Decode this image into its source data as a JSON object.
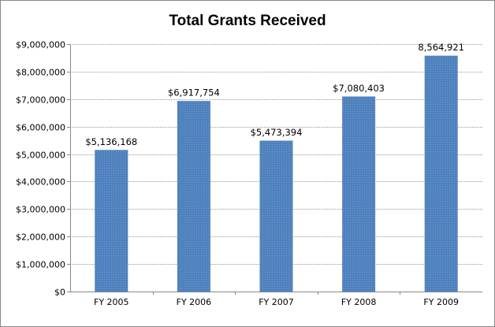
{
  "chart_data": {
    "type": "bar",
    "title": "Total Grants Received",
    "xlabel": "",
    "ylabel": "",
    "categories": [
      "FY 2005",
      "FY 2006",
      "FY 2007",
      "FY 2008",
      "FY 2009"
    ],
    "values": [
      5136168,
      6917754,
      5473394,
      7080403,
      8564921
    ],
    "data_labels": [
      "$5,136,168",
      "$6,917,754",
      "$5,473,394",
      "$7,080,403",
      "8,564,921"
    ],
    "ylim": [
      0,
      9000000
    ],
    "yticks": [
      0,
      1000000,
      2000000,
      3000000,
      4000000,
      5000000,
      6000000,
      7000000,
      8000000,
      9000000
    ],
    "ytick_labels": [
      "$0",
      "$1,000,000",
      "$2,000,000",
      "$3,000,000",
      "$4,000,000",
      "$5,000,000",
      "$6,000,000",
      "$7,000,000",
      "$8,000,000",
      "$9,000,000"
    ],
    "grid": true,
    "legend": "none",
    "bar_color": "#4F81BD"
  }
}
